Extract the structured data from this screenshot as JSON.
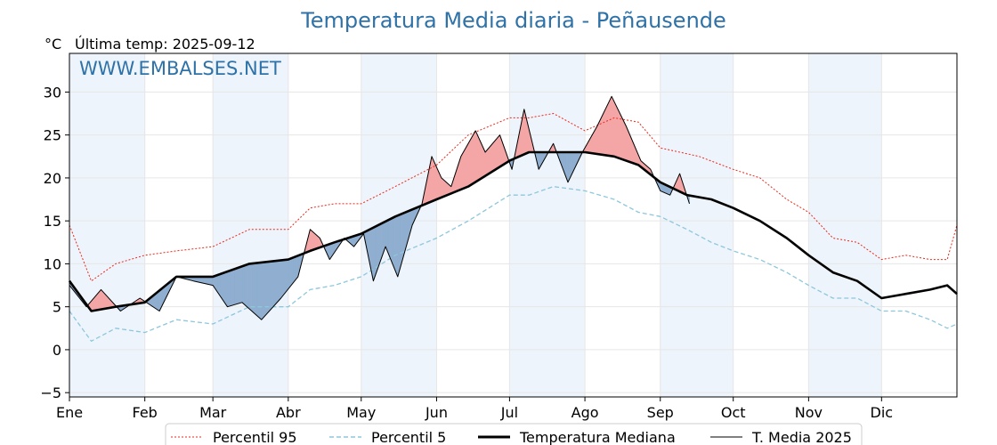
{
  "chart_data": {
    "type": "line",
    "title": "Temperatura Media diaria - Peñausende",
    "unit_label": "°C",
    "last_temp_label": "Última temp: 2025-09-12",
    "watermark": "WWW.EMBALSES.NET",
    "ylim": [
      -5.5,
      34.5
    ],
    "yticks": [
      {
        "v": -5,
        "label": "−5"
      },
      {
        "v": 0,
        "label": "0"
      },
      {
        "v": 5,
        "label": "5"
      },
      {
        "v": 10,
        "label": "10"
      },
      {
        "v": 15,
        "label": "15"
      },
      {
        "v": 20,
        "label": "20"
      },
      {
        "v": 25,
        "label": "25"
      },
      {
        "v": 30,
        "label": "30"
      }
    ],
    "months": [
      {
        "label": "Ene",
        "day": 1
      },
      {
        "label": "Feb",
        "day": 32
      },
      {
        "label": "Mar",
        "day": 60
      },
      {
        "label": "Abr",
        "day": 91
      },
      {
        "label": "May",
        "day": 121
      },
      {
        "label": "Jun",
        "day": 152
      },
      {
        "label": "Jul",
        "day": 182
      },
      {
        "label": "Ago",
        "day": 213
      },
      {
        "label": "Sep",
        "day": 244
      },
      {
        "label": "Oct",
        "day": 274
      },
      {
        "label": "Nov",
        "day": 305
      },
      {
        "label": "Dic",
        "day": 335
      }
    ],
    "xlim": [
      1,
      366
    ],
    "grid": true,
    "legend_position": "bottom",
    "colors": {
      "p95": "#e8291c",
      "p5": "#8ec7dc",
      "median": "#000000",
      "current": "#000000",
      "above": "#f4a6a6",
      "above_dark": "#e05555",
      "below": "#8faed0",
      "below_dark": "#1f5f9a",
      "band": "#eef4fb",
      "title": "#2e72a8"
    },
    "series": [
      {
        "key": "p95",
        "name": "Percentil 95",
        "points": [
          [
            1,
            14.5
          ],
          [
            10,
            8
          ],
          [
            20,
            10
          ],
          [
            32,
            11
          ],
          [
            45,
            11.5
          ],
          [
            60,
            12
          ],
          [
            75,
            14
          ],
          [
            91,
            14
          ],
          [
            100,
            16.5
          ],
          [
            110,
            17
          ],
          [
            121,
            17
          ],
          [
            135,
            19
          ],
          [
            152,
            21.5
          ],
          [
            165,
            25
          ],
          [
            182,
            27
          ],
          [
            190,
            27
          ],
          [
            200,
            27.5
          ],
          [
            213,
            25.5
          ],
          [
            225,
            27
          ],
          [
            235,
            26.5
          ],
          [
            244,
            23.5
          ],
          [
            260,
            22.5
          ],
          [
            274,
            21
          ],
          [
            285,
            20
          ],
          [
            296,
            17.5
          ],
          [
            305,
            16
          ],
          [
            315,
            13
          ],
          [
            325,
            12.5
          ],
          [
            335,
            10.5
          ],
          [
            345,
            11
          ],
          [
            355,
            10.5
          ],
          [
            362,
            10.5
          ],
          [
            366,
            14.5
          ]
        ]
      },
      {
        "key": "p5",
        "name": "Percentil 5",
        "points": [
          [
            1,
            4.5
          ],
          [
            10,
            1
          ],
          [
            20,
            2.5
          ],
          [
            32,
            2
          ],
          [
            45,
            3.5
          ],
          [
            60,
            3
          ],
          [
            75,
            5
          ],
          [
            91,
            5
          ],
          [
            100,
            7
          ],
          [
            110,
            7.5
          ],
          [
            121,
            8.5
          ],
          [
            135,
            11
          ],
          [
            152,
            13
          ],
          [
            165,
            15
          ],
          [
            182,
            18
          ],
          [
            190,
            18
          ],
          [
            200,
            19
          ],
          [
            213,
            18.5
          ],
          [
            225,
            17.5
          ],
          [
            235,
            16
          ],
          [
            244,
            15.5
          ],
          [
            255,
            14
          ],
          [
            265,
            12.5
          ],
          [
            274,
            11.5
          ],
          [
            285,
            10.5
          ],
          [
            296,
            9
          ],
          [
            305,
            7.5
          ],
          [
            315,
            6
          ],
          [
            325,
            6
          ],
          [
            335,
            4.5
          ],
          [
            345,
            4.5
          ],
          [
            355,
            3.5
          ],
          [
            362,
            2.5
          ],
          [
            366,
            3
          ]
        ]
      },
      {
        "key": "median",
        "name": "Temperatura Mediana",
        "points": [
          [
            1,
            8
          ],
          [
            10,
            4.5
          ],
          [
            20,
            5
          ],
          [
            32,
            5.5
          ],
          [
            45,
            8.5
          ],
          [
            60,
            8.5
          ],
          [
            75,
            10
          ],
          [
            91,
            10.5
          ],
          [
            100,
            11.5
          ],
          [
            110,
            12.5
          ],
          [
            121,
            13.5
          ],
          [
            135,
            15.5
          ],
          [
            152,
            17.5
          ],
          [
            165,
            19
          ],
          [
            182,
            22
          ],
          [
            190,
            23
          ],
          [
            200,
            23
          ],
          [
            213,
            23
          ],
          [
            225,
            22.5
          ],
          [
            235,
            21.5
          ],
          [
            244,
            19.5
          ],
          [
            255,
            18
          ],
          [
            265,
            17.5
          ],
          [
            274,
            16.5
          ],
          [
            285,
            15
          ],
          [
            296,
            13
          ],
          [
            305,
            11
          ],
          [
            315,
            9
          ],
          [
            325,
            8
          ],
          [
            335,
            6
          ],
          [
            345,
            6.5
          ],
          [
            355,
            7
          ],
          [
            362,
            7.5
          ],
          [
            366,
            6.5
          ]
        ]
      },
      {
        "key": "current",
        "name": "T. Media 2025",
        "points": [
          [
            1,
            7.5
          ],
          [
            8,
            5
          ],
          [
            14,
            7
          ],
          [
            22,
            4.5
          ],
          [
            30,
            6
          ],
          [
            38,
            4.5
          ],
          [
            45,
            8.5
          ],
          [
            52,
            8
          ],
          [
            60,
            7.5
          ],
          [
            66,
            5
          ],
          [
            72,
            5.5
          ],
          [
            80,
            3.5
          ],
          [
            88,
            6
          ],
          [
            95,
            8.5
          ],
          [
            100,
            14
          ],
          [
            104,
            13
          ],
          [
            108,
            10.5
          ],
          [
            114,
            13
          ],
          [
            118,
            12
          ],
          [
            122,
            13.5
          ],
          [
            126,
            8
          ],
          [
            131,
            12
          ],
          [
            136,
            8.5
          ],
          [
            142,
            14.5
          ],
          [
            146,
            17
          ],
          [
            150,
            22.5
          ],
          [
            154,
            20
          ],
          [
            158,
            19
          ],
          [
            162,
            22.5
          ],
          [
            168,
            25.5
          ],
          [
            172,
            23
          ],
          [
            178,
            25
          ],
          [
            183,
            21
          ],
          [
            188,
            28
          ],
          [
            194,
            21
          ],
          [
            200,
            24
          ],
          [
            206,
            19.5
          ],
          [
            212,
            23
          ],
          [
            218,
            26
          ],
          [
            224,
            29.5
          ],
          [
            230,
            26
          ],
          [
            236,
            22
          ],
          [
            240,
            21
          ],
          [
            244,
            18.5
          ],
          [
            248,
            18
          ],
          [
            252,
            20.5
          ],
          [
            256,
            17
          ]
        ]
      }
    ]
  }
}
